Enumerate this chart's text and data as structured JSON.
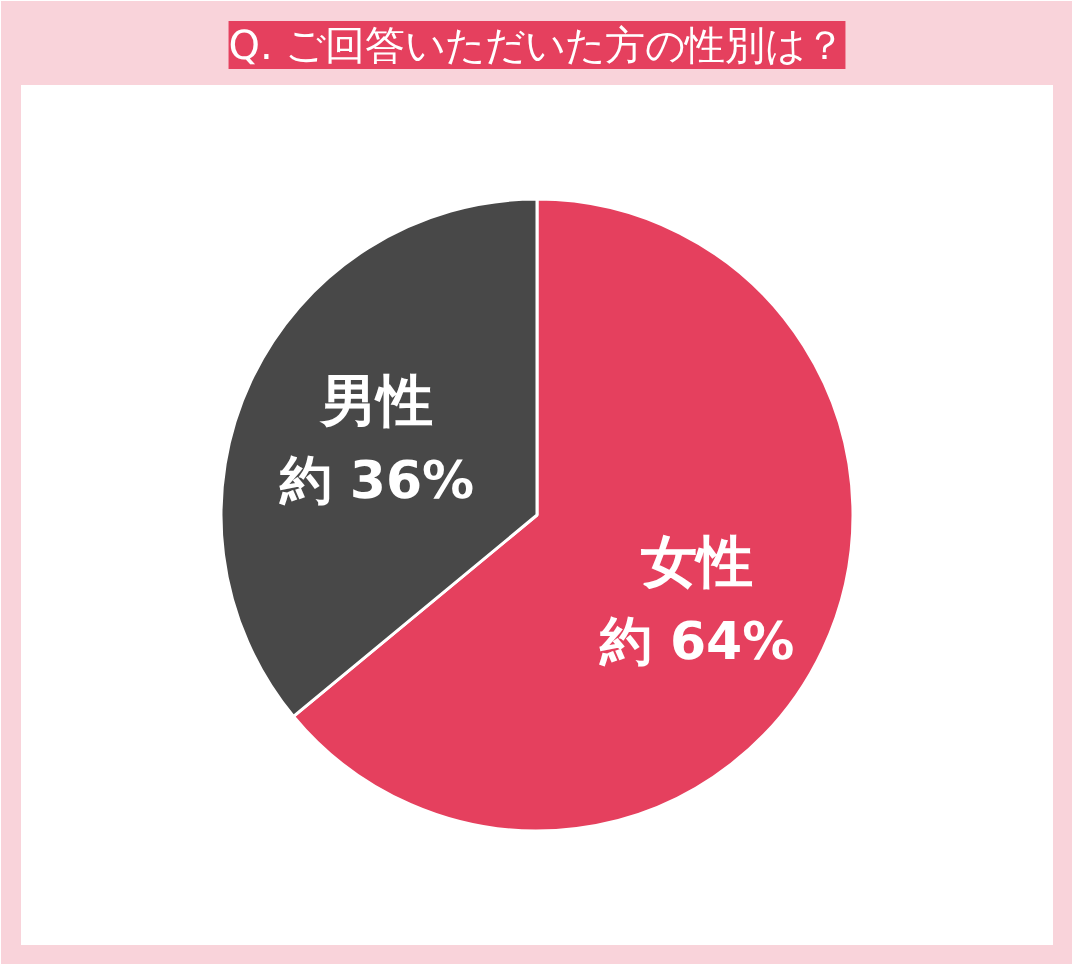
{
  "chart_data": {
    "type": "pie",
    "title": "Q. ご回答いただいた方の性別は？",
    "categories": [
      "女性",
      "男性"
    ],
    "values": [
      64,
      36
    ],
    "colors": [
      "#e5405e",
      "#484848"
    ],
    "value_labels": [
      "約 64%",
      "約 36%"
    ]
  }
}
